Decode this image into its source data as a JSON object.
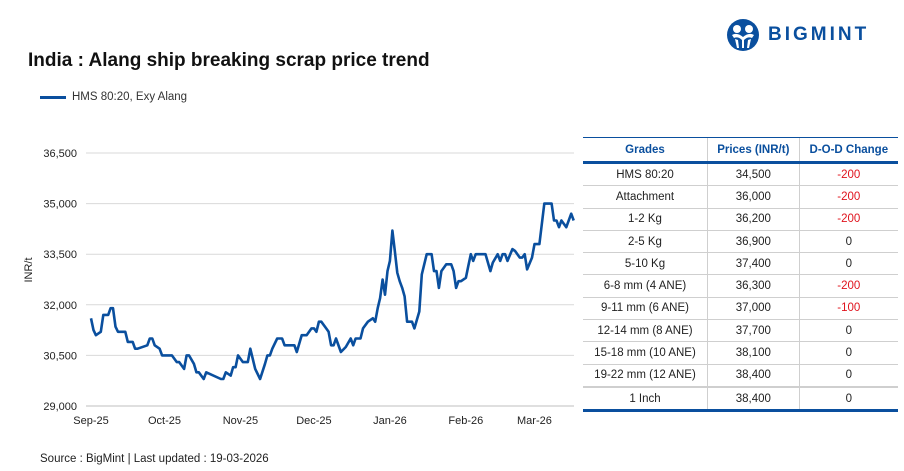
{
  "title": "India : Alang ship breaking scrap price trend",
  "brand": {
    "name": "BIGMINT",
    "color": "#0a4f9e"
  },
  "source": "Source : BigMint | Last updated : 19-03-2026",
  "table": {
    "headers": [
      "Grades",
      "Prices (INR/t)",
      "D-O-D Change"
    ],
    "rows": [
      [
        "HMS 80:20",
        "34,500",
        "-200"
      ],
      [
        "Attachment",
        "36,000",
        "-200"
      ],
      [
        "1-2 Kg",
        "36,200",
        "-200"
      ],
      [
        "2-5 Kg",
        "36,900",
        "0"
      ],
      [
        "5-10 Kg",
        "37,400",
        "0"
      ],
      [
        "6-8 mm (4 ANE)",
        "36,300",
        "-200"
      ],
      [
        "9-11 mm (6 ANE)",
        "37,000",
        "-100"
      ],
      [
        "12-14 mm (8 ANE)",
        "37,700",
        "0"
      ],
      [
        "15-18 mm (10 ANE)",
        "38,100",
        "0"
      ],
      [
        "19-22 mm (12 ANE)",
        "38,400",
        "0"
      ],
      [
        "1 Inch",
        "38,400",
        "0"
      ]
    ],
    "negative_color": "#e0141e"
  },
  "chart_data": {
    "type": "line",
    "title": "India : Alang ship breaking scrap price trend",
    "xlabel": "",
    "ylabel": "INR/t",
    "ylim": [
      29000,
      36500
    ],
    "yticks": [
      29000,
      30500,
      32000,
      33500,
      35000,
      36500
    ],
    "ytick_labels": [
      "29,000",
      "30,500",
      "32,000",
      "33,500",
      "35,000",
      "36,500"
    ],
    "xticks": [
      "2025-09-01",
      "2025-10-01",
      "2025-11-01",
      "2025-12-01",
      "2026-01-01",
      "2026-02-01",
      "2026-03-01"
    ],
    "xtick_labels": [
      "Sep-25",
      "Oct-25",
      "Nov-25",
      "Dec-25",
      "Jan-26",
      "Feb-26",
      "Mar-26"
    ],
    "grid": "horizontal",
    "legend": "top-left",
    "series": [
      {
        "name": "HMS 80:20, Exy Alang",
        "color": "#0a4f9e",
        "points": [
          [
            "2025-09-01",
            31600
          ],
          [
            "2025-09-02",
            31250
          ],
          [
            "2025-09-03",
            31100
          ],
          [
            "2025-09-05",
            31200
          ],
          [
            "2025-09-06",
            31700
          ],
          [
            "2025-09-08",
            31700
          ],
          [
            "2025-09-09",
            31900
          ],
          [
            "2025-09-10",
            31900
          ],
          [
            "2025-09-11",
            31350
          ],
          [
            "2025-09-12",
            31200
          ],
          [
            "2025-09-15",
            31200
          ],
          [
            "2025-09-16",
            30900
          ],
          [
            "2025-09-18",
            30900
          ],
          [
            "2025-09-19",
            30700
          ],
          [
            "2025-09-20",
            30700
          ],
          [
            "2025-09-24",
            30800
          ],
          [
            "2025-09-25",
            31000
          ],
          [
            "2025-09-26",
            31000
          ],
          [
            "2025-09-27",
            30800
          ],
          [
            "2025-09-29",
            30700
          ],
          [
            "2025-09-30",
            30500
          ],
          [
            "2025-10-04",
            30500
          ],
          [
            "2025-10-06",
            30300
          ],
          [
            "2025-10-07",
            30300
          ],
          [
            "2025-10-09",
            30100
          ],
          [
            "2025-10-10",
            30500
          ],
          [
            "2025-10-11",
            30500
          ],
          [
            "2025-10-13",
            30250
          ],
          [
            "2025-10-14",
            30000
          ],
          [
            "2025-10-15",
            30000
          ],
          [
            "2025-10-17",
            29800
          ],
          [
            "2025-10-18",
            30000
          ],
          [
            "2025-10-24",
            29800
          ],
          [
            "2025-10-25",
            29800
          ],
          [
            "2025-10-26",
            30000
          ],
          [
            "2025-10-28",
            29900
          ],
          [
            "2025-10-29",
            30150
          ],
          [
            "2025-10-30",
            30150
          ],
          [
            "2025-10-31",
            30500
          ],
          [
            "2025-11-02",
            30300
          ],
          [
            "2025-11-04",
            30300
          ],
          [
            "2025-11-05",
            30700
          ],
          [
            "2025-11-07",
            30100
          ],
          [
            "2025-11-09",
            29800
          ],
          [
            "2025-11-11",
            30250
          ],
          [
            "2025-11-12",
            30500
          ],
          [
            "2025-11-13",
            30500
          ],
          [
            "2025-11-14",
            30700
          ],
          [
            "2025-11-16",
            31000
          ],
          [
            "2025-11-18",
            31000
          ],
          [
            "2025-11-19",
            30800
          ],
          [
            "2025-11-23",
            30800
          ],
          [
            "2025-11-24",
            30600
          ],
          [
            "2025-11-26",
            31100
          ],
          [
            "2025-11-28",
            31100
          ],
          [
            "2025-11-30",
            31300
          ],
          [
            "2025-12-01",
            31300
          ],
          [
            "2025-12-02",
            31200
          ],
          [
            "2025-12-03",
            31500
          ],
          [
            "2025-12-04",
            31500
          ],
          [
            "2025-12-06",
            31300
          ],
          [
            "2025-12-07",
            31200
          ],
          [
            "2025-12-08",
            30800
          ],
          [
            "2025-12-09",
            30800
          ],
          [
            "2025-12-10",
            31000
          ],
          [
            "2025-12-12",
            30600
          ],
          [
            "2025-12-14",
            30750
          ],
          [
            "2025-12-16",
            31000
          ],
          [
            "2025-12-17",
            30800
          ],
          [
            "2025-12-18",
            31000
          ],
          [
            "2025-12-20",
            31000
          ],
          [
            "2025-12-21",
            31300
          ],
          [
            "2025-12-23",
            31500
          ],
          [
            "2025-12-25",
            31600
          ],
          [
            "2025-12-26",
            31500
          ],
          [
            "2025-12-27",
            31900
          ],
          [
            "2025-12-28",
            32200
          ],
          [
            "2025-12-29",
            32750
          ],
          [
            "2025-12-30",
            32300
          ],
          [
            "2025-12-31",
            33000
          ],
          [
            "2026-01-01",
            33300
          ],
          [
            "2026-01-02",
            34200
          ],
          [
            "2026-01-03",
            33600
          ],
          [
            "2026-01-04",
            32950
          ],
          [
            "2026-01-05",
            32700
          ],
          [
            "2026-01-06",
            32500
          ],
          [
            "2026-01-07",
            32250
          ],
          [
            "2026-01-08",
            31500
          ],
          [
            "2026-01-10",
            31500
          ],
          [
            "2026-01-11",
            31300
          ],
          [
            "2026-01-13",
            31800
          ],
          [
            "2026-01-14",
            32900
          ],
          [
            "2026-01-16",
            33500
          ],
          [
            "2026-01-18",
            33500
          ],
          [
            "2026-01-19",
            33000
          ],
          [
            "2026-01-20",
            33000
          ],
          [
            "2026-01-21",
            32500
          ],
          [
            "2026-01-22",
            33000
          ],
          [
            "2026-01-24",
            33200
          ],
          [
            "2026-01-26",
            33200
          ],
          [
            "2026-01-27",
            33000
          ],
          [
            "2026-01-28",
            32500
          ],
          [
            "2026-01-29",
            32700
          ],
          [
            "2026-01-30",
            32700
          ],
          [
            "2026-02-01",
            32800
          ],
          [
            "2026-02-02",
            33150
          ],
          [
            "2026-02-03",
            33500
          ],
          [
            "2026-02-04",
            33300
          ],
          [
            "2026-02-05",
            33500
          ],
          [
            "2026-02-09",
            33500
          ],
          [
            "2026-02-11",
            33000
          ],
          [
            "2026-02-12",
            33250
          ],
          [
            "2026-02-14",
            33500
          ],
          [
            "2026-02-15",
            33300
          ],
          [
            "2026-02-16",
            33500
          ],
          [
            "2026-02-17",
            33500
          ],
          [
            "2026-02-18",
            33300
          ],
          [
            "2026-02-20",
            33650
          ],
          [
            "2026-02-21",
            33600
          ],
          [
            "2026-02-23",
            33400
          ],
          [
            "2026-02-24",
            33400
          ],
          [
            "2026-02-25",
            33500
          ],
          [
            "2026-02-26",
            33050
          ],
          [
            "2026-02-28",
            33400
          ],
          [
            "2026-03-01",
            33800
          ],
          [
            "2026-03-03",
            33800
          ],
          [
            "2026-03-05",
            35000
          ],
          [
            "2026-03-08",
            35000
          ],
          [
            "2026-03-09",
            34500
          ],
          [
            "2026-03-10",
            34500
          ],
          [
            "2026-03-11",
            34300
          ],
          [
            "2026-03-12",
            34500
          ],
          [
            "2026-03-14",
            34300
          ],
          [
            "2026-03-16",
            34700
          ],
          [
            "2026-03-17",
            34500
          ]
        ]
      }
    ]
  }
}
